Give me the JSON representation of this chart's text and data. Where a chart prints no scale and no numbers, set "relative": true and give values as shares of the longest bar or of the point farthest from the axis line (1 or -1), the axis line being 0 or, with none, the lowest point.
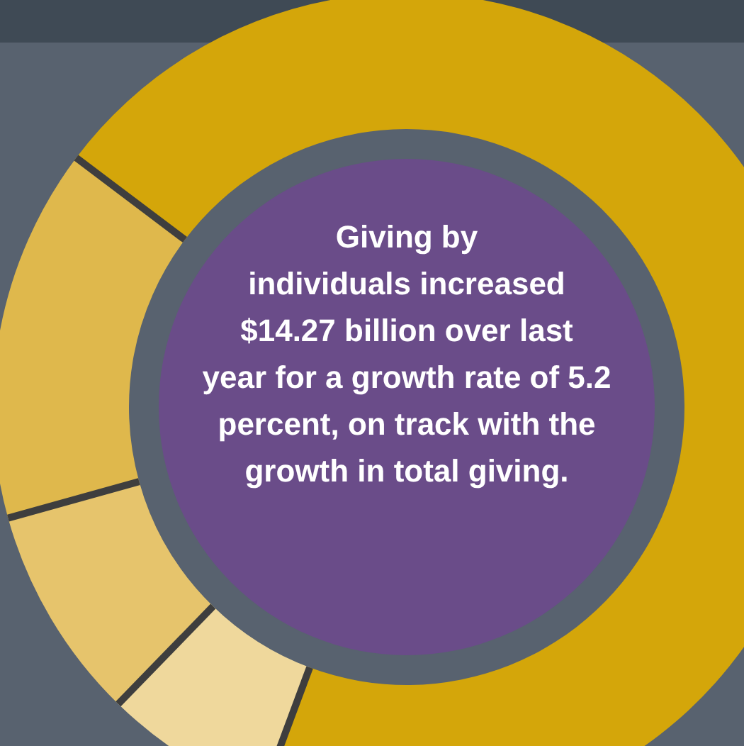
{
  "chart_data": {
    "type": "donut",
    "relative": true,
    "categories": [
      null,
      null,
      null,
      null
    ],
    "values": [
      70.4,
      6.6,
      8.4,
      14.6
    ],
    "colors": [
      "#d4a60a",
      "#efd89c",
      "#e6c46c",
      "#dfb84c"
    ],
    "annotations": [
      "Giving by individuals increased $14.27 billion over last year for a growth rate of 5.2 percent, on track with the growth in total giving."
    ]
  }
}
